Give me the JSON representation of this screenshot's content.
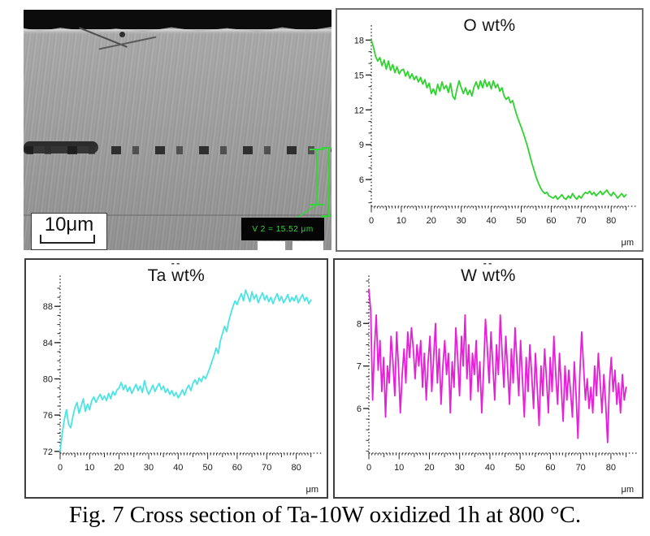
{
  "figure": {
    "caption": "Fig. 7 Cross section of Ta-10W oxidized 1h at 800 °C."
  },
  "sem_image": {
    "scale_bar_label": "10μm",
    "measurement_label": "V 2 = 15.52 μm",
    "annotation_color": "#36d43a"
  },
  "artifact_mark": "--",
  "chart_data": [
    {
      "type": "line",
      "title": "O wt%",
      "xlabel": "μm",
      "color": "#2ed32e",
      "xlim": [
        0,
        87
      ],
      "ylim": [
        3.7,
        18.8
      ],
      "x_range": [
        0,
        85
      ],
      "xticks": [
        0,
        10,
        20,
        30,
        40,
        50,
        60,
        70,
        80
      ],
      "yticks": [
        6,
        9,
        12,
        15,
        18
      ],
      "yminor": 1,
      "values": [
        18.0,
        17.4,
        16.6,
        16.2,
        16.5,
        15.8,
        16.3,
        15.5,
        16.2,
        15.4,
        15.9,
        15.2,
        15.7,
        15.1,
        15.4,
        15.5,
        14.9,
        15.3,
        14.7,
        15.1,
        14.6,
        14.9,
        14.4,
        14.8,
        14.2,
        14.6,
        13.9,
        14.3,
        13.4,
        13.8,
        13.3,
        14.2,
        13.6,
        14.4,
        13.8,
        14.1,
        13.5,
        14.3,
        13.2,
        12.9,
        13.8,
        14.5,
        13.9,
        13.4,
        13.9,
        13.3,
        13.7,
        13.2,
        14.0,
        14.4,
        13.8,
        14.5,
        13.9,
        14.6,
        14.0,
        14.4,
        13.8,
        14.5,
        13.9,
        14.2,
        13.6,
        13.9,
        13.2,
        12.9,
        13.1,
        12.6,
        12.8,
        12.1,
        11.5,
        11.0,
        10.5,
        10.0,
        9.4,
        8.8,
        8.1,
        7.4,
        6.8,
        6.2,
        5.7,
        5.3,
        5.0,
        4.8,
        4.9,
        4.6,
        4.5,
        4.4,
        4.6,
        4.3,
        4.5,
        4.7,
        4.4,
        4.3,
        4.6,
        4.4,
        4.8,
        4.5,
        4.3,
        4.6,
        4.4,
        4.7,
        4.9,
        4.8,
        5.0,
        4.7,
        4.9,
        4.6,
        4.8,
        5.0,
        4.7,
        4.9,
        5.1,
        4.8,
        4.6,
        4.9,
        4.7,
        4.4,
        4.6,
        4.8,
        4.5,
        4.7
      ]
    },
    {
      "type": "line",
      "title": "Ta wt%",
      "xlabel": "μm",
      "color": "#4ae4e4",
      "xlim": [
        0,
        87
      ],
      "ylim": [
        71.8,
        90.8
      ],
      "x_range": [
        0,
        85
      ],
      "xticks": [
        0,
        10,
        20,
        30,
        40,
        50,
        60,
        70,
        80
      ],
      "yticks": [
        72,
        76,
        80,
        84,
        88
      ],
      "yminor": 1,
      "values": [
        72.0,
        74.0,
        75.5,
        76.6,
        75.0,
        74.6,
        75.8,
        76.8,
        77.4,
        76.2,
        77.0,
        77.8,
        76.4,
        77.2,
        76.6,
        77.6,
        78.0,
        77.4,
        77.9,
        78.3,
        77.7,
        78.1,
        77.6,
        78.4,
        77.8,
        78.6,
        78.2,
        78.8,
        79.0,
        79.6,
        78.8,
        79.3,
        78.6,
        79.1,
        78.4,
        78.9,
        79.4,
        78.7,
        79.2,
        78.5,
        79.8,
        78.9,
        78.3,
        78.8,
        79.3,
        78.6,
        79.1,
        79.5,
        78.8,
        79.2,
        78.5,
        78.9,
        78.3,
        78.7,
        78.1,
        78.5,
        77.9,
        78.3,
        78.8,
        78.2,
        78.9,
        79.3,
        78.7,
        79.5,
        79.9,
        79.4,
        80.1,
        79.7,
        80.3,
        80.0,
        80.6,
        81.2,
        81.9,
        82.6,
        83.4,
        82.8,
        84.2,
        85.0,
        85.8,
        85.2,
        86.4,
        87.2,
        88.0,
        88.6,
        88.2,
        88.9,
        89.4,
        88.6,
        89.8,
        89.2,
        88.5,
        89.6,
        88.8,
        89.3,
        88.4,
        89.0,
        89.5,
        88.7,
        89.2,
        88.5,
        89.0,
        88.3,
        88.9,
        89.4,
        88.6,
        89.1,
        88.4,
        88.8,
        89.3,
        88.5,
        89.0,
        88.6,
        89.2,
        88.4,
        88.9,
        89.3,
        88.6,
        89.0,
        88.3,
        88.7
      ]
    },
    {
      "type": "line",
      "title": "W wt%",
      "xlabel": "μm",
      "color": "#e81fd8",
      "xlim": [
        0,
        87
      ],
      "ylim": [
        4.95,
        9.0
      ],
      "x_range": [
        0,
        85
      ],
      "xticks": [
        0,
        10,
        20,
        30,
        40,
        50,
        60,
        70,
        80
      ],
      "yticks": [
        6,
        7,
        8
      ],
      "yminor": 0.25,
      "values": [
        8.8,
        8.3,
        6.2,
        7.4,
        8.2,
        6.9,
        7.6,
        6.4,
        7.2,
        5.8,
        7.0,
        6.6,
        7.7,
        7.1,
        6.3,
        7.8,
        7.0,
        5.9,
        6.8,
        7.4,
        6.6,
        7.8,
        7.2,
        7.9,
        7.4,
        6.7,
        7.5,
        7.0,
        7.6,
        6.5,
        7.3,
        6.2,
        7.1,
        7.7,
        6.4,
        7.2,
        8.0,
        6.6,
        7.4,
        6.1,
        7.0,
        7.6,
        6.8,
        7.3,
        5.9,
        7.1,
        6.5,
        7.9,
        7.2,
        6.3,
        7.7,
        7.0,
        8.2,
        6.7,
        7.5,
        6.2,
        7.3,
        6.8,
        7.6,
        6.4,
        7.1,
        5.9,
        6.9,
        8.1,
        7.4,
        6.6,
        7.8,
        7.0,
        6.2,
        7.5,
        6.8,
        8.2,
        7.3,
        6.5,
        7.7,
        6.9,
        6.1,
        7.4,
        6.6,
        7.9,
        7.1,
        6.3,
        7.6,
        6.7,
        5.8,
        7.2,
        6.4,
        7.5,
        6.8,
        6.0,
        7.3,
        6.5,
        5.6,
        7.0,
        6.3,
        7.4,
        6.7,
        5.9,
        7.2,
        6.4,
        7.7,
        6.8,
        6.1,
        7.3,
        6.5,
        5.7,
        7.0,
        6.2,
        6.9,
        6.4,
        5.8,
        7.1,
        6.3,
        5.3,
        6.8,
        7.8,
        7.0,
        6.2,
        6.7,
        6.0,
        6.5,
        5.9,
        7.0,
        6.3,
        7.3,
        6.6,
        5.9,
        6.8,
        6.1,
        5.2,
        6.6,
        7.2,
        6.4,
        6.9,
        6.1,
        6.6,
        5.9,
        6.8,
        6.2,
        6.5
      ]
    }
  ]
}
